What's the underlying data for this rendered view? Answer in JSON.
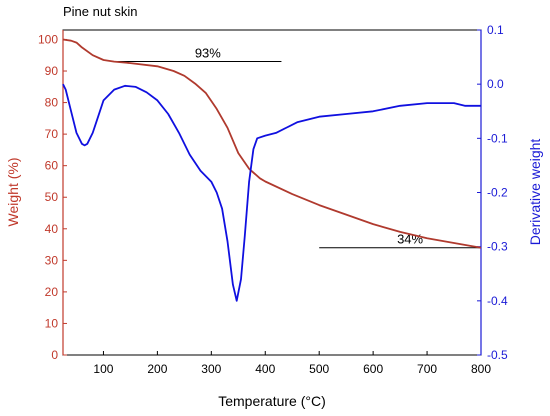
{
  "chart_data": {
    "type": "line",
    "title": "Pine nut skin",
    "xlabel": "Temperature (°C)",
    "ylabel_left": "Weight (%)",
    "ylabel_right": "Derivative weight",
    "xlim": [
      25,
      800
    ],
    "ylim_left": [
      0,
      103
    ],
    "ylim_right": [
      -0.5,
      0.1
    ],
    "x_ticks": [
      "100",
      "200",
      "300",
      "400",
      "500",
      "600",
      "700",
      "800"
    ],
    "y_left_ticks": [
      "0",
      "10",
      "20",
      "30",
      "40",
      "50",
      "60",
      "70",
      "80",
      "90",
      "100"
    ],
    "y_right_ticks": [
      "0.1",
      "0.0",
      "-0.1",
      "-0.2",
      "-0.3",
      "-0.4",
      "-0.5"
    ],
    "series": [
      {
        "axis": "left",
        "color": "#b03a2e",
        "x": [
          25,
          40,
          50,
          60,
          80,
          100,
          120,
          150,
          200,
          230,
          250,
          270,
          290,
          310,
          330,
          350,
          370,
          390,
          400,
          450,
          500,
          550,
          600,
          650,
          700,
          750,
          800
        ],
        "y": [
          100,
          99.6,
          99,
          97.5,
          95,
          93.5,
          93,
          92.5,
          91.5,
          90,
          88.5,
          86,
          83,
          78,
          72,
          64,
          59,
          56,
          55,
          51,
          47.5,
          44.5,
          41.5,
          39,
          37,
          35.5,
          34
        ]
      },
      {
        "axis": "right",
        "color": "#1010e0",
        "x": [
          25,
          30,
          40,
          50,
          60,
          65,
          70,
          80,
          90,
          100,
          120,
          140,
          160,
          180,
          200,
          220,
          240,
          260,
          280,
          300,
          310,
          320,
          330,
          340,
          347,
          355,
          362,
          370,
          378,
          385,
          400,
          420,
          440,
          460,
          500,
          550,
          600,
          650,
          700,
          750,
          770,
          800
        ],
        "y": [
          0.0,
          -0.01,
          -0.05,
          -0.09,
          -0.11,
          -0.113,
          -0.11,
          -0.09,
          -0.06,
          -0.03,
          -0.01,
          -0.003,
          -0.005,
          -0.015,
          -0.03,
          -0.055,
          -0.09,
          -0.13,
          -0.16,
          -0.18,
          -0.2,
          -0.23,
          -0.29,
          -0.37,
          -0.4,
          -0.36,
          -0.28,
          -0.18,
          -0.12,
          -0.1,
          -0.095,
          -0.09,
          -0.08,
          -0.07,
          -0.06,
          -0.055,
          -0.05,
          -0.04,
          -0.035,
          -0.035,
          -0.04,
          -0.04
        ]
      }
    ],
    "annotations": [
      {
        "text": "93%",
        "x_start": 120,
        "x_end": 430,
        "y": 93
      },
      {
        "text": "34%",
        "x_start": 500,
        "x_end": 800,
        "y": 34
      }
    ],
    "colors": {
      "left_axis": "#c0392b",
      "right_axis": "#1a1ad6"
    }
  }
}
